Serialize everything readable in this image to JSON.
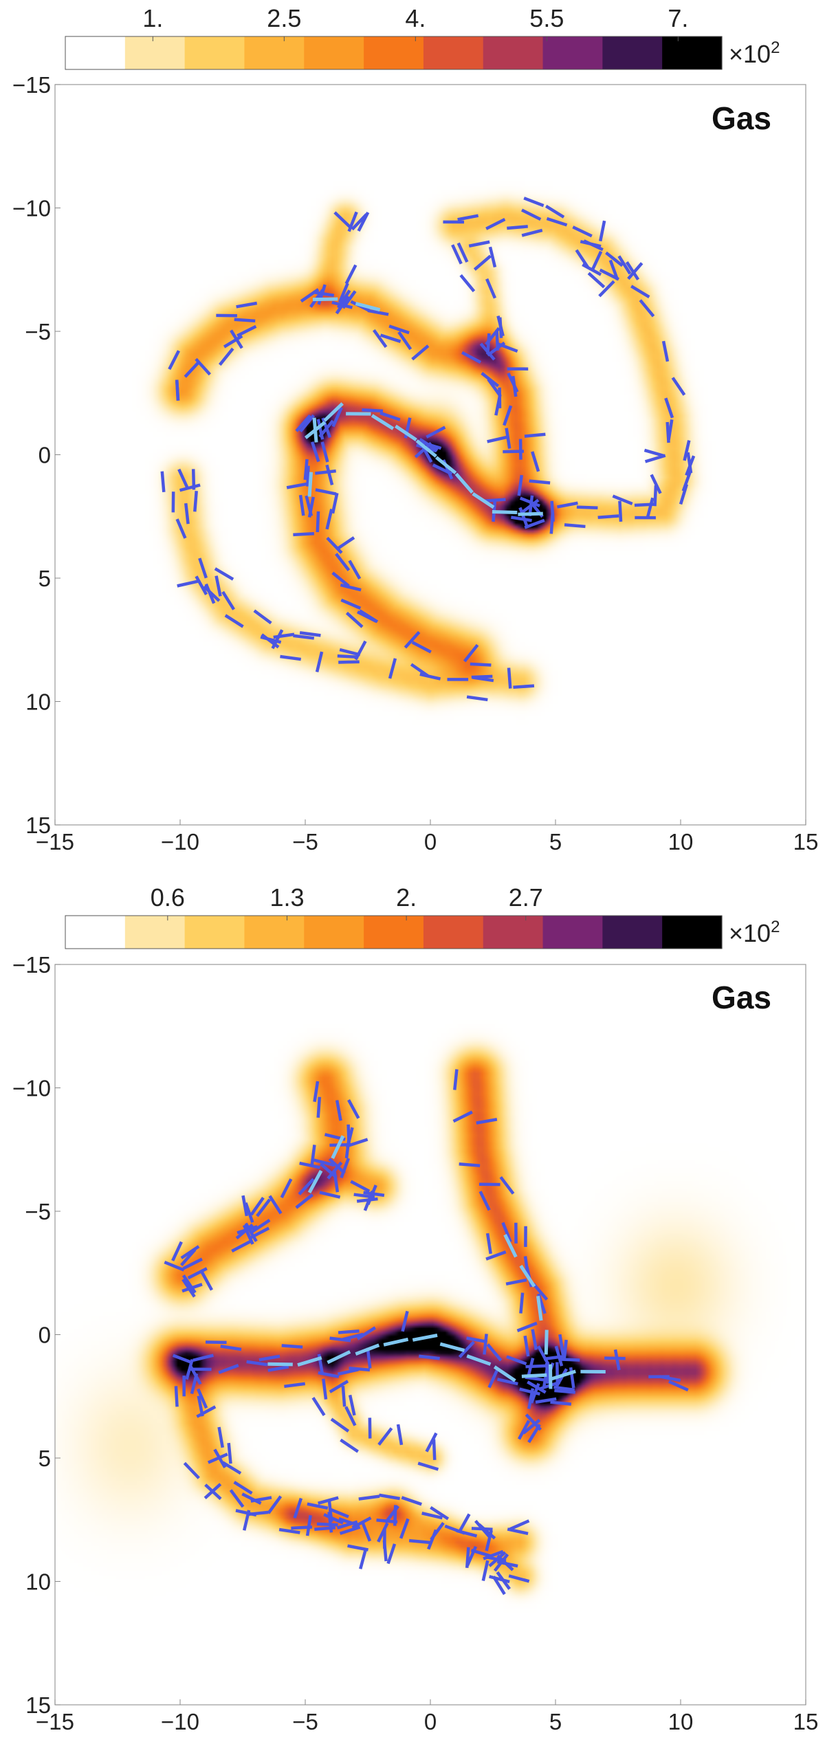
{
  "chart_data": [
    {
      "type": "heatmap",
      "panel_label": "Gas",
      "x_ticks": [
        -15,
        -10,
        -5,
        0,
        5,
        10,
        15
      ],
      "y_ticks": [
        -15,
        -10,
        -5,
        0,
        5,
        10,
        15
      ],
      "x_tick_labels": [
        "−15",
        "−10",
        "−5",
        "0",
        "5",
        "10",
        "15"
      ],
      "y_tick_labels": [
        "−15",
        "−10",
        "−5",
        "0",
        "5",
        "10",
        "15"
      ],
      "xlim": [
        -15,
        15
      ],
      "ylim": [
        -15,
        15
      ],
      "y_axis_inverted": true,
      "colorbar": {
        "ticks": [
          1.0,
          2.5,
          4.0,
          5.5,
          7.0
        ],
        "tick_labels": [
          "1.",
          "2.5",
          "4.",
          "5.5",
          "7."
        ],
        "multiplier_base": "×10",
        "multiplier_exp": "2",
        "range": [
          0,
          7.5
        ],
        "bins": 11,
        "colors": [
          "#ffffff",
          "#fee6a6",
          "#fed061",
          "#fdb53c",
          "#fa9a26",
          "#f6771a",
          "#de5433",
          "#b33a52",
          "#782572",
          "#3b1650",
          "#000000"
        ]
      },
      "density_field": {
        "filaments": [
          {
            "points": [
              [
                -4.6,
                -1.0
              ],
              [
                -4.8,
                1.2
              ],
              [
                -4.5,
                3.5
              ],
              [
                -3.4,
                5.4
              ],
              [
                -1.8,
                6.7
              ],
              [
                -0.2,
                7.6
              ],
              [
                1.5,
                8.2
              ]
            ],
            "width": 0.62,
            "peak": 3.6
          },
          {
            "points": [
              [
                -4.6,
                -1.0
              ],
              [
                -3.8,
                -1.8
              ],
              [
                -2.5,
                -1.6
              ],
              [
                -1.0,
                -0.9
              ],
              [
                0.3,
                0.1
              ],
              [
                1.4,
                1.2
              ],
              [
                2.6,
                2.3
              ],
              [
                4.0,
                2.4
              ]
            ],
            "width": 0.6,
            "peak": 5.2
          },
          {
            "points": [
              [
                4.0,
                2.4
              ],
              [
                3.6,
                1.2
              ],
              [
                3.5,
                -0.6
              ],
              [
                3.3,
                -2.4
              ],
              [
                2.8,
                -3.6
              ],
              [
                2.0,
                -4.4
              ]
            ],
            "width": 0.55,
            "peak": 4.0
          },
          {
            "points": [
              [
                4.0,
                2.4
              ],
              [
                5.8,
                2.3
              ],
              [
                7.6,
                2.4
              ],
              [
                9.3,
                2.3
              ],
              [
                9.8,
                1.0
              ],
              [
                9.6,
                -1.5
              ],
              [
                9.0,
                -4.0
              ],
              [
                8.2,
                -6.4
              ],
              [
                6.8,
                -8.2
              ],
              [
                5.0,
                -9.3
              ],
              [
                3.0,
                -9.6
              ],
              [
                1.0,
                -9.3
              ]
            ],
            "width": 0.45,
            "peak": 1.9
          },
          {
            "points": [
              [
                -9.9,
                -2.6
              ],
              [
                -9.4,
                -4.0
              ],
              [
                -8.0,
                -5.2
              ],
              [
                -6.2,
                -5.9
              ],
              [
                -4.2,
                -6.3
              ],
              [
                -2.5,
                -6.0
              ],
              [
                -1.2,
                -5.1
              ],
              [
                0.2,
                -4.2
              ],
              [
                1.8,
                -3.9
              ]
            ],
            "width": 0.55,
            "peak": 3.0
          },
          {
            "points": [
              [
                -4.2,
                -6.3
              ],
              [
                -4.0,
                -7.3
              ],
              [
                -3.8,
                -8.6
              ],
              [
                -3.4,
                -9.6
              ]
            ],
            "width": 0.4,
            "peak": 1.8
          },
          {
            "points": [
              [
                -9.9,
                1.0
              ],
              [
                -9.7,
                3.0
              ],
              [
                -9.2,
                4.8
              ],
              [
                -8.1,
                6.3
              ],
              [
                -6.4,
                7.4
              ],
              [
                -4.2,
                8.1
              ],
              [
                -2.0,
                8.8
              ],
              [
                0.0,
                9.3
              ],
              [
                2.0,
                9.0
              ],
              [
                3.6,
                9.2
              ]
            ],
            "width": 0.45,
            "peak": 1.7
          },
          {
            "points": [
              [
                2.8,
                -3.6
              ],
              [
                2.4,
                -5.6
              ],
              [
                2.2,
                -7.3
              ],
              [
                1.6,
                -8.3
              ]
            ],
            "width": 0.35,
            "peak": 1.4
          }
        ],
        "blobs": [
          {
            "x": 0.4,
            "y": -0.2,
            "sx": 0.6,
            "sy": 0.9,
            "peak": 3.2
          },
          {
            "x": 3.9,
            "y": 2.4,
            "sx": 0.8,
            "sy": 0.5,
            "peak": 1.2
          }
        ]
      },
      "vectors": {
        "count": 210,
        "seed": 11,
        "bright": [
          {
            "points": [
              [
                -4.6,
                -1.0
              ],
              [
                -3.8,
                -1.8
              ],
              [
                -2.5,
                -1.6
              ],
              [
                -1.0,
                -0.9
              ],
              [
                0.3,
                0.1
              ],
              [
                1.4,
                1.2
              ],
              [
                2.6,
                2.3
              ],
              [
                4.0,
                2.4
              ]
            ],
            "n": 11
          },
          {
            "points": [
              [
                -4.6,
                -1.0
              ],
              [
                -4.8,
                1.2
              ]
            ],
            "n": 2
          },
          {
            "points": [
              [
                -4.2,
                -6.3
              ],
              [
                -2.5,
                -6.0
              ]
            ],
            "n": 2
          }
        ]
      }
    },
    {
      "type": "heatmap",
      "panel_label": "Gas",
      "x_ticks": [
        -15,
        -10,
        -5,
        0,
        5,
        10,
        15
      ],
      "y_ticks": [
        -15,
        -10,
        -5,
        0,
        5,
        10,
        15
      ],
      "x_tick_labels": [
        "−15",
        "−10",
        "−5",
        "0",
        "5",
        "10",
        "15"
      ],
      "y_tick_labels": [
        "−15",
        "−10",
        "−5",
        "0",
        "5",
        "10",
        "15"
      ],
      "xlim": [
        -15,
        15
      ],
      "ylim": [
        -15,
        15
      ],
      "y_axis_inverted": true,
      "colorbar": {
        "ticks": [
          0.6,
          1.3,
          2.0,
          2.7
        ],
        "tick_labels": [
          "0.6",
          "1.3",
          "2.",
          "2.7"
        ],
        "multiplier_base": "×10",
        "multiplier_exp": "2",
        "range": [
          0,
          3.85
        ],
        "bins": 11,
        "colors": [
          "#ffffff",
          "#fee6a6",
          "#fed061",
          "#fdb53c",
          "#fa9a26",
          "#f6771a",
          "#de5433",
          "#b33a52",
          "#782572",
          "#3b1650",
          "#000000"
        ]
      },
      "density_field": {
        "filaments": [
          {
            "points": [
              [
                -10.0,
                1.1
              ],
              [
                -8.0,
                1.1
              ],
              [
                -6.0,
                1.2
              ],
              [
                -4.0,
                1.0
              ],
              [
                -2.5,
                0.6
              ],
              [
                -1.0,
                0.2
              ],
              [
                0.0,
                0.1
              ],
              [
                1.5,
                0.8
              ],
              [
                3.0,
                1.6
              ],
              [
                4.8,
                1.7
              ],
              [
                6.5,
                1.5
              ],
              [
                8.5,
                1.5
              ],
              [
                10.5,
                1.5
              ]
            ],
            "width": 0.7,
            "peak": 2.9
          },
          {
            "points": [
              [
                4.8,
                1.7
              ],
              [
                4.6,
                0.0
              ],
              [
                4.2,
                -1.8
              ],
              [
                3.2,
                -3.6
              ],
              [
                2.4,
                -5.5
              ],
              [
                2.0,
                -7.5
              ],
              [
                1.9,
                -9.2
              ],
              [
                1.8,
                -10.5
              ]
            ],
            "width": 0.6,
            "peak": 2.2
          },
          {
            "points": [
              [
                4.8,
                1.7
              ],
              [
                4.5,
                3.0
              ],
              [
                4.0,
                4.0
              ]
            ],
            "width": 0.6,
            "peak": 2.0
          },
          {
            "points": [
              [
                -9.9,
                -2.4
              ],
              [
                -8.8,
                -3.4
              ],
              [
                -7.4,
                -4.2
              ],
              [
                -6.0,
                -5.0
              ],
              [
                -4.6,
                -6.2
              ],
              [
                -3.7,
                -7.6
              ],
              [
                -3.8,
                -9.0
              ],
              [
                -4.2,
                -10.3
              ]
            ],
            "width": 0.62,
            "peak": 1.9
          },
          {
            "points": [
              [
                -4.6,
                -6.2
              ],
              [
                -3.4,
                -6.4
              ],
              [
                -2.2,
                -6.0
              ]
            ],
            "width": 0.5,
            "peak": 1.4
          },
          {
            "points": [
              [
                -9.7,
                1.1
              ],
              [
                -9.3,
                3.5
              ],
              [
                -8.6,
                5.6
              ],
              [
                -7.2,
                6.8
              ],
              [
                -5.4,
                7.3
              ],
              [
                -3.2,
                7.4
              ],
              [
                -1.5,
                7.2
              ]
            ],
            "width": 0.5,
            "peak": 1.4
          },
          {
            "points": [
              [
                -5.4,
                7.3
              ],
              [
                -3.2,
                8.2
              ],
              [
                -1.0,
                8.3
              ],
              [
                1.5,
                8.6
              ],
              [
                3.5,
                8.4
              ]
            ],
            "width": 0.45,
            "peak": 1.2
          },
          {
            "points": [
              [
                -1.5,
                7.2
              ],
              [
                0.5,
                7.9
              ],
              [
                2.2,
                8.8
              ],
              [
                3.6,
                9.8
              ]
            ],
            "width": 0.4,
            "peak": 1.0
          },
          {
            "points": [
              [
                -4.0,
                1.0
              ],
              [
                -3.8,
                2.6
              ],
              [
                -3.0,
                4.0
              ],
              [
                -1.4,
                4.6
              ],
              [
                0.0,
                5.0
              ]
            ],
            "width": 0.35,
            "peak": 0.9
          }
        ],
        "blobs": [
          {
            "x": 0.0,
            "y": 0.2,
            "sx": 1.1,
            "sy": 0.6,
            "peak": 1.6
          },
          {
            "x": -1.5,
            "y": 0.5,
            "sx": 1.5,
            "sy": 0.6,
            "peak": 0.8
          },
          {
            "x": 4.5,
            "y": 1.8,
            "sx": 1.3,
            "sy": 0.9,
            "peak": 1.1
          },
          {
            "x": 9.8,
            "y": -2.0,
            "sx": 1.6,
            "sy": 1.8,
            "peak": 0.35
          },
          {
            "x": -12.0,
            "y": 4.5,
            "sx": 1.6,
            "sy": 2.0,
            "peak": 0.25
          }
        ]
      },
      "vectors": {
        "count": 230,
        "seed": 23,
        "bright": [
          {
            "points": [
              [
                -6.0,
                1.2
              ],
              [
                -4.0,
                1.0
              ],
              [
                -2.5,
                0.6
              ],
              [
                -1.0,
                0.2
              ],
              [
                0.0,
                0.1
              ],
              [
                1.5,
                0.8
              ],
              [
                3.0,
                1.6
              ],
              [
                4.8,
                1.7
              ],
              [
                6.5,
                1.5
              ]
            ],
            "n": 12
          },
          {
            "points": [
              [
                4.8,
                1.7
              ],
              [
                4.6,
                0.0
              ],
              [
                4.2,
                -1.8
              ],
              [
                3.2,
                -3.6
              ]
            ],
            "n": 5
          },
          {
            "points": [
              [
                -4.6,
                -6.2
              ],
              [
                -3.7,
                -7.6
              ]
            ],
            "n": 2
          }
        ]
      }
    }
  ]
}
